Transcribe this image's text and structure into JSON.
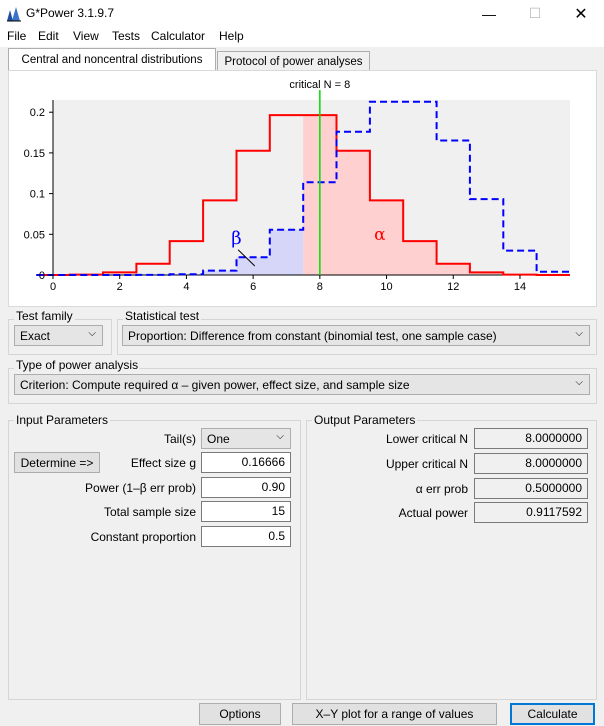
{
  "window": {
    "title": "G*Power 3.1.9.7"
  },
  "menu": [
    "File",
    "Edit",
    "View",
    "Tests",
    "Calculator",
    "Help"
  ],
  "tabs": {
    "distributions": "Central and noncentral distributions",
    "protocol": "Protocol of power analyses"
  },
  "chart_data": {
    "type": "area",
    "title": "critical N = 8",
    "xlim": [
      0,
      15.5
    ],
    "ylim": [
      0,
      0.215
    ],
    "x_ticks": [
      0,
      2,
      4,
      6,
      8,
      10,
      12,
      14
    ],
    "y_ticks": [
      0,
      0.05,
      0.1,
      0.15,
      0.2
    ],
    "y_tick_labels": [
      "0",
      "0.05",
      "0.1",
      "0.15",
      "0.2"
    ],
    "critical_x": 8,
    "series": [
      {
        "name": "",
        "style": "solid",
        "color": "#ff0000",
        "x": [
          0,
          1,
          2,
          3,
          4,
          5,
          6,
          7,
          8,
          9,
          10,
          11,
          12,
          13,
          14,
          15
        ],
        "values": [
          3e-05,
          0.0005,
          0.0032,
          0.0139,
          0.0417,
          0.0916,
          0.1527,
          0.1964,
          0.1964,
          0.1527,
          0.0916,
          0.0417,
          0.0139,
          0.0032,
          0.0005,
          3e-05
        ]
      },
      {
        "name": "",
        "style": "dashed",
        "color": "#0000ff",
        "x": [
          0,
          1,
          2,
          3,
          4,
          5,
          6,
          7,
          8,
          9,
          10,
          11,
          12,
          13,
          14,
          15
        ],
        "values": [
          0,
          0,
          0,
          0.0001,
          0.0009,
          0.0054,
          0.0217,
          0.0555,
          0.1139,
          0.1761,
          0.2129,
          0.2129,
          0.1652,
          0.0933,
          0.03,
          0.0041
        ]
      }
    ],
    "annotations": {
      "beta": "β",
      "alpha": "α"
    },
    "colors": {
      "alpha_fill": "#ffd0d0",
      "beta_fill": "#d6d6f8",
      "critical_line": "#00dd00",
      "plot_bg": "#f0f0f0"
    }
  },
  "test_family": {
    "label": "Test family",
    "value": "Exact"
  },
  "statistical_test": {
    "label": "Statistical test",
    "value": "Proportion: Difference from constant (binomial test, one sample case)"
  },
  "power_analysis": {
    "label": "Type of power analysis",
    "value": "Criterion: Compute required α – given power, effect size, and sample size"
  },
  "input": {
    "title": "Input Parameters",
    "determine": "Determine =>",
    "tails_label": "Tail(s)",
    "tails_value": "One",
    "effect_label": "Effect size g",
    "effect_value": "0.16666",
    "power_label": "Power (1–β err prob)",
    "power_value": "0.90",
    "total_label": "Total sample size",
    "total_value": "15",
    "const_label": "Constant proportion",
    "const_value": "0.5"
  },
  "output": {
    "title": "Output Parameters",
    "lower_label": "Lower critical N",
    "lower_value": "8.0000000",
    "upper_label": "Upper critical N",
    "upper_value": "8.0000000",
    "alpha_label": "α err prob",
    "alpha_value": "0.5000000",
    "power_label": "Actual power",
    "power_value": "0.9117592"
  },
  "buttons": {
    "options": "Options",
    "xy_plot": "X–Y plot for a range of values",
    "calculate": "Calculate"
  }
}
